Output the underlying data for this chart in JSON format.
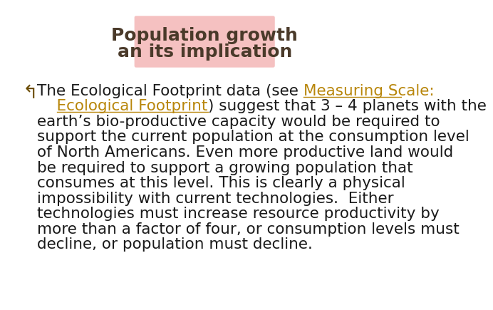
{
  "background_color": "#ffffff",
  "border_color": "#cccccc",
  "title_text_line1": "Population growth",
  "title_text_line2": "an its implication",
  "title_bg_color": "#f0a0a0",
  "title_text_color": "#4a3a2a",
  "title_fontsize": 18,
  "bullet_symbol": "↰",
  "bullet_color": "#6b4c00",
  "body_text_color": "#1a1a1a",
  "link_color": "#b8860b",
  "body_fontsize": 15.5,
  "line1_normal": "The Ecological Footprint data (see ",
  "line1_link": "Measuring Scale:",
  "line2_link_indent": "    Ecological Footprint",
  "line2_normal": ") suggest that 3 – 4 planets with the",
  "line3": "earth’s bio-productive capacity would be required to",
  "line4": "support the current population at the consumption level",
  "line5": "of North Americans. Even more productive land would",
  "line6": "be required to support a growing population that",
  "line7": "consumes at this level. This is clearly a physical",
  "line8": "impossibility with current technologies.  Either",
  "line9": "technologies must increase resource productivity by",
  "line10": "more than a factor of four, or consumption levels must",
  "line11": "decline, or population must decline."
}
